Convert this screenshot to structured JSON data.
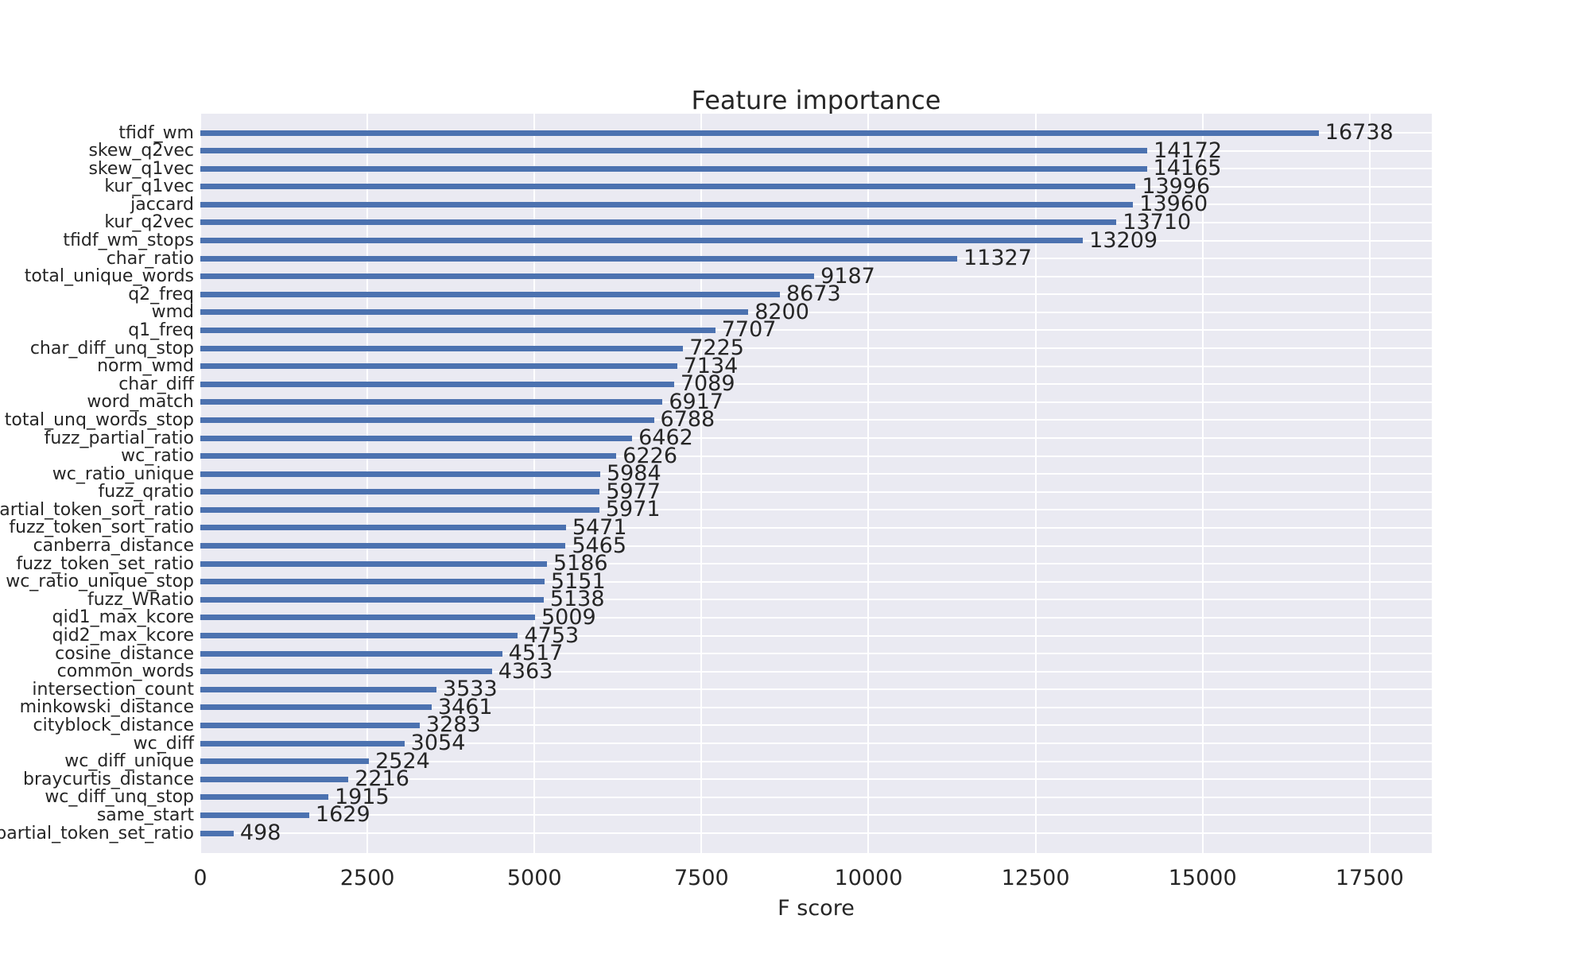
{
  "chart_data": {
    "type": "bar",
    "orientation": "horizontal",
    "title": "Feature importance",
    "xlabel": "F score",
    "categories": [
      "tfidf_wm",
      "skew_q2vec",
      "skew_q1vec",
      "kur_q1vec",
      "jaccard",
      "kur_q2vec",
      "tfidf_wm_stops",
      "char_ratio",
      "total_unique_words",
      "q2_freq",
      "wmd",
      "q1_freq",
      "char_diff_unq_stop",
      "norm_wmd",
      "char_diff",
      "word_match",
      "total_unq_words_stop",
      "fuzz_partial_ratio",
      "wc_ratio",
      "wc_ratio_unique",
      "fuzz_qratio",
      "partial_token_sort_ratio",
      "fuzz_token_sort_ratio",
      "canberra_distance",
      "fuzz_token_set_ratio",
      "wc_ratio_unique_stop",
      "fuzz_WRatio",
      "qid1_max_kcore",
      "qid2_max_kcore",
      "cosine_distance",
      "common_words",
      "intersection_count",
      "minkowski_distance",
      "cityblock_distance",
      "wc_diff",
      "wc_diff_unique",
      "braycurtis_distance",
      "wc_diff_unq_stop",
      "same_start",
      "_partial_token_set_ratio"
    ],
    "values": [
      16738,
      14172,
      14165,
      13996,
      13960,
      13710,
      13209,
      11327,
      9187,
      8673,
      8200,
      7707,
      7225,
      7134,
      7089,
      6917,
      6788,
      6462,
      6226,
      5984,
      5977,
      5971,
      5471,
      5465,
      5186,
      5151,
      5138,
      5009,
      4753,
      4517,
      4363,
      3533,
      3461,
      3283,
      3054,
      2524,
      2216,
      1915,
      1629,
      498
    ],
    "xticks": [
      0,
      2500,
      5000,
      7500,
      10000,
      12500,
      15000,
      17500
    ],
    "xlim": [
      0,
      18430
    ],
    "grid": true,
    "legend": null,
    "colors": {
      "bar": "#4c72b0",
      "plot_background": "#eaeaf2",
      "gridline": "#ffffff",
      "text": "#262626",
      "figure_background": "#ffffff"
    }
  }
}
